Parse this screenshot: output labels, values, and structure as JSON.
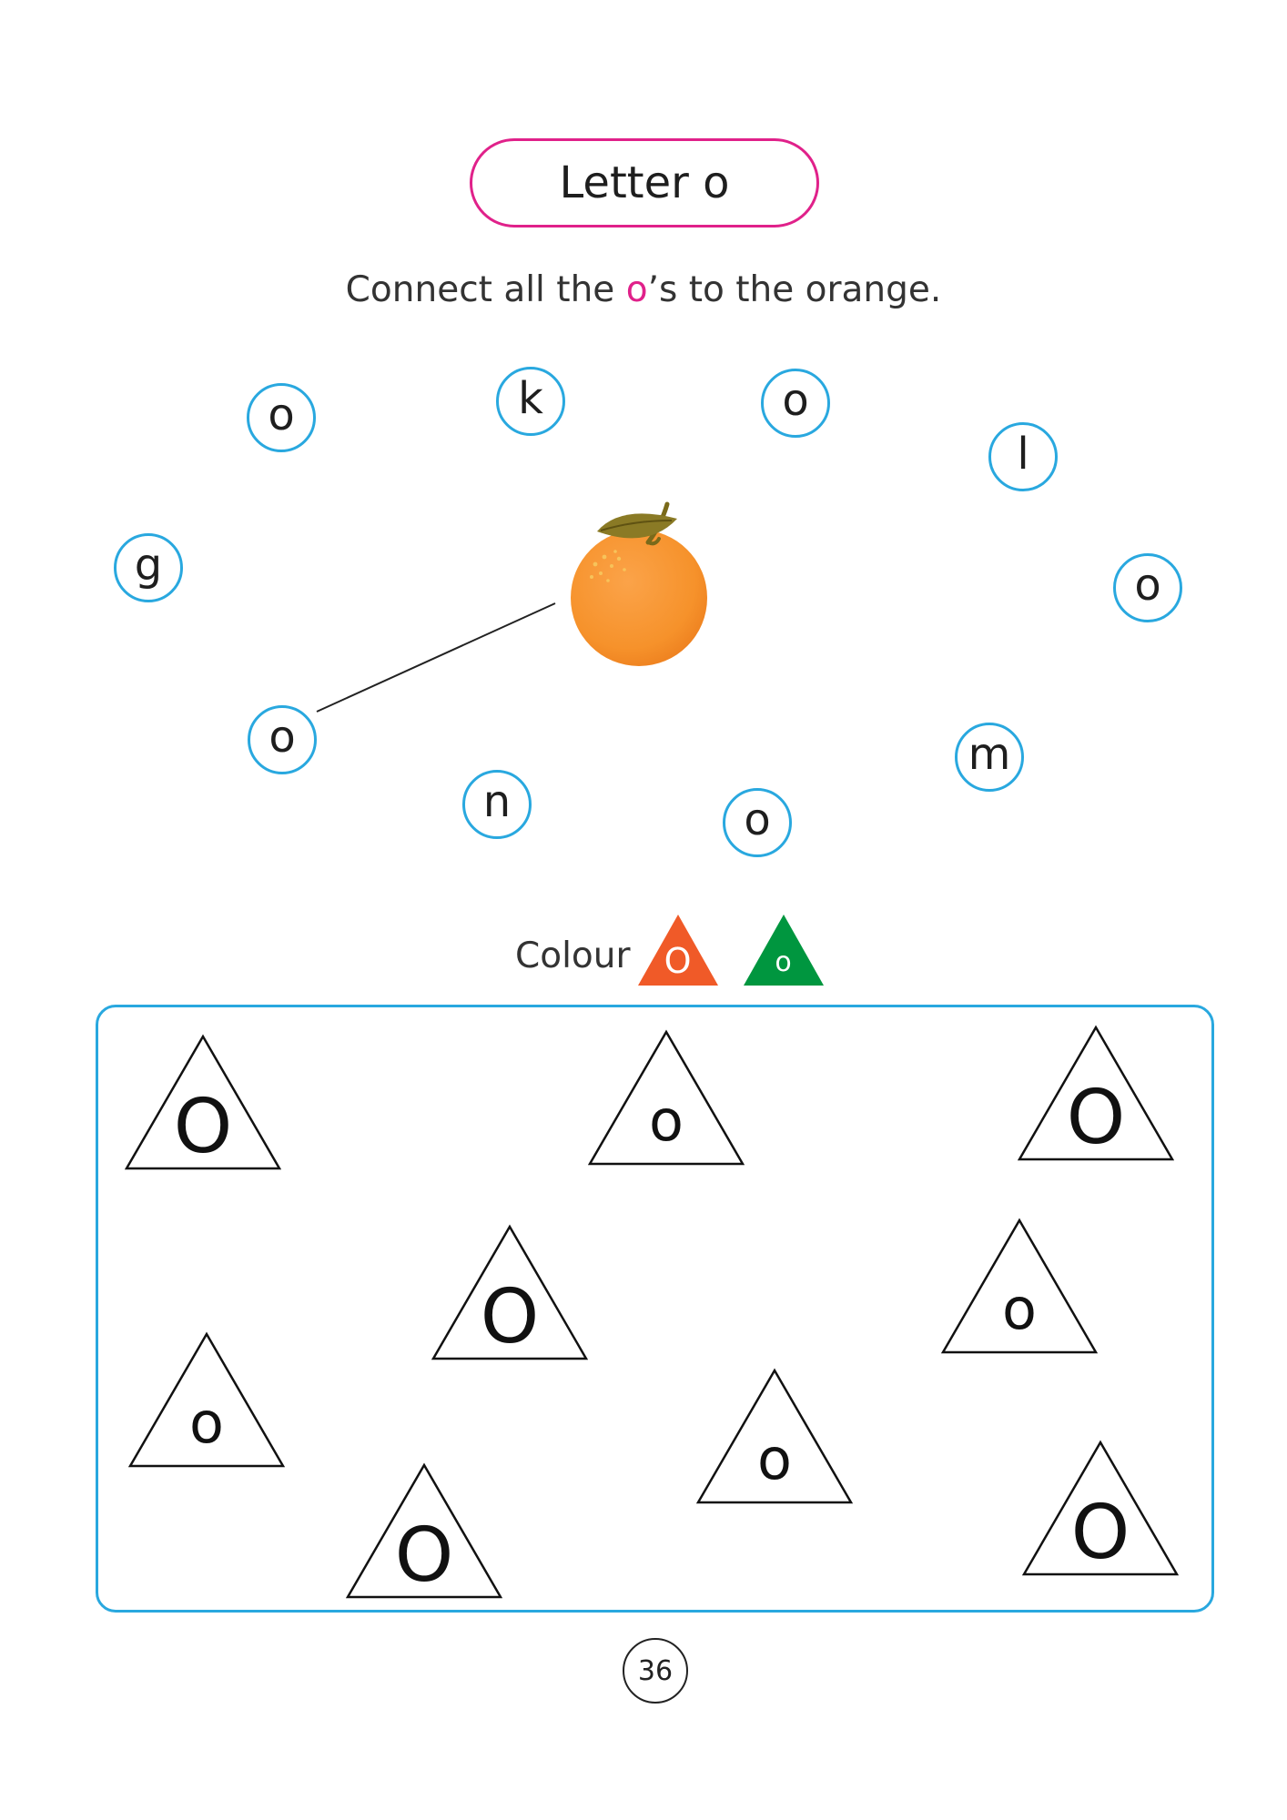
{
  "title": "Letter o",
  "instruction": {
    "before": "Connect all the ",
    "highlight": "o",
    "after": "’s to the orange."
  },
  "bubbles": [
    "o",
    "k",
    "o",
    "l",
    "g",
    "o",
    "o",
    "m",
    "n",
    "o"
  ],
  "colour_key": {
    "label": "Colour",
    "items": [
      {
        "letter": "O",
        "color": "#f05a28"
      },
      {
        "letter": "o",
        "color": "#00963f"
      }
    ]
  },
  "triangles": [
    "O",
    "o",
    "O",
    "O",
    "o",
    "o",
    "o",
    "O",
    "O"
  ],
  "page_number": "36"
}
